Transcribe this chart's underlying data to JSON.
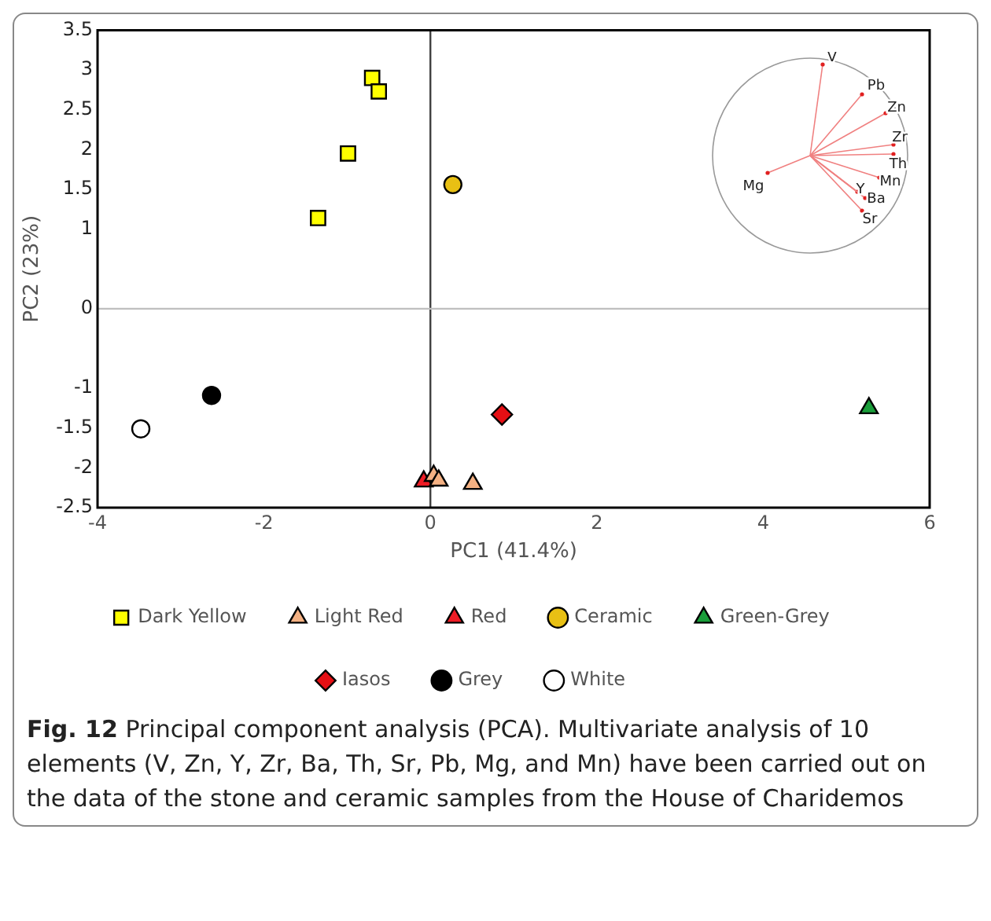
{
  "chart_data": [
    {
      "type": "scatter",
      "xlabel": "PC1 (41.4%)",
      "ylabel": "PC2 (23%)",
      "xlim": [
        -4,
        6
      ],
      "xticks": [
        -4,
        -2,
        0,
        2,
        4,
        6
      ],
      "ylim": [
        -2.5,
        3.5
      ],
      "yticks": [
        -2.5,
        -2,
        -1.5,
        -1,
        0,
        1,
        1.5,
        2,
        2.5,
        3,
        3.5
      ],
      "grid": false,
      "legend": "bottom",
      "ref_lines": [
        {
          "axis": "x",
          "value": 0,
          "color": "#404040"
        },
        {
          "axis": "y",
          "value": 0,
          "color": "#bfbfbf"
        }
      ],
      "series": [
        {
          "name": "Dark Yellow",
          "color": "#ffff00",
          "marker": "square",
          "x": [
            -0.7,
            -0.62,
            -0.99,
            -1.35
          ],
          "values": [
            2.9,
            2.73,
            1.95,
            1.14
          ]
        },
        {
          "name": "Light Red",
          "color": "#f4b183",
          "marker": "triangle",
          "x": [
            0.04,
            0.1,
            0.51
          ],
          "values": [
            -2.1,
            -2.16,
            -2.2
          ]
        },
        {
          "name": "Red",
          "color": "#ee1c25",
          "marker": "triangle",
          "x": [
            -0.08
          ],
          "values": [
            -2.17
          ]
        },
        {
          "name": "Ceramic",
          "color": "#e8c014",
          "marker": "circle",
          "x": [
            0.27
          ],
          "values": [
            1.56
          ]
        },
        {
          "name": "Green-Grey",
          "color": "#1a9e3a",
          "marker": "triangle",
          "x": [
            5.27
          ],
          "values": [
            -1.25
          ]
        },
        {
          "name": "Iasos",
          "color": "#e50f14",
          "marker": "diamond",
          "x": [
            0.86
          ],
          "values": [
            -1.33
          ]
        },
        {
          "name": "Grey",
          "color": "#000000",
          "marker": "circle",
          "x": [
            -2.63
          ],
          "values": [
            -1.09
          ]
        },
        {
          "name": "White",
          "color": "#ffffff",
          "marker": "circle",
          "x": [
            -3.48
          ],
          "values": [
            -1.51
          ]
        }
      ],
      "annotations": [
        "Fig. 12",
        "Principal component analysis (PCA). Multivariate analysis of 10 elements (V, Zn, Y, Zr, Ba, Th, Sr, Pb, Mg, and Mn) have been carried out on the data of the stone and ceramic samples from the House of Charidemos"
      ]
    },
    {
      "type": "other",
      "annotations": [
        "V",
        "Pb",
        "Zn",
        "Zr",
        "Th",
        "Mn",
        "Y",
        "Ba",
        "Sr",
        "Mg"
      ]
    }
  ]
}
